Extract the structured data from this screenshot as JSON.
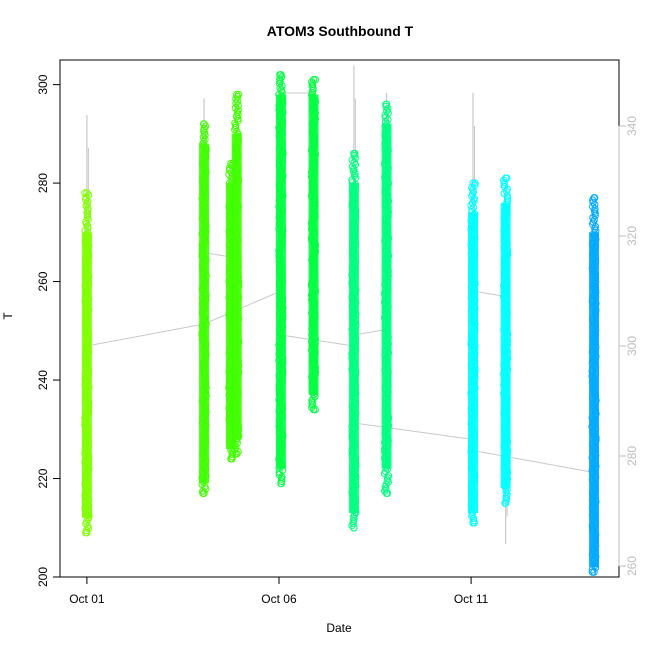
{
  "chart_data": {
    "type": "scatter",
    "title": "ATOM3 Southbound T",
    "xlabel": "Date",
    "ylabel": "T",
    "x_ticks": [
      {
        "day": 1,
        "label": "Oct 01"
      },
      {
        "day": 6,
        "label": "Oct 06"
      },
      {
        "day": 11,
        "label": "Oct 11"
      }
    ],
    "xlim": [
      "Oct 01",
      "Oct 15"
    ],
    "ylim": [
      200,
      305
    ],
    "y_ticks": [
      "200",
      "220",
      "240",
      "260",
      "280",
      "300"
    ],
    "ylim_right": [
      258,
      352
    ],
    "y2_ticks": [
      "260",
      "280",
      "300",
      "320",
      "340"
    ],
    "grid": false,
    "series": [
      {
        "color": "#80ff00",
        "segments": [
          {
            "date": "Oct 01",
            "day": 1.0,
            "ymin": 209,
            "ymax": 278,
            "dense": [
              212,
              270
            ]
          }
        ]
      },
      {
        "color": "#40ff00",
        "segments": [
          {
            "date": "Oct 04",
            "day": 4.05,
            "ymin": 217,
            "ymax": 292,
            "dense": [
              219,
              288
            ]
          },
          {
            "date": "Oct 05",
            "day": 4.75,
            "ymin": 224,
            "ymax": 284,
            "dense": [
              226,
              280
            ]
          },
          {
            "date": "Oct 05",
            "day": 4.9,
            "ymin": 225,
            "ymax": 298,
            "dense": [
              228,
              290
            ]
          }
        ]
      },
      {
        "color": "#00ff40",
        "segments": [
          {
            "date": "Oct 06",
            "day": 6.05,
            "ymin": 219,
            "ymax": 302,
            "dense": [
              222,
              298
            ]
          },
          {
            "date": "Oct 07",
            "day": 6.9,
            "ymin": 234,
            "ymax": 301,
            "dense": [
              237,
              298
            ]
          }
        ]
      },
      {
        "color": "#00ff80",
        "segments": [
          {
            "date": "Oct 08",
            "day": 7.95,
            "ymin": 210,
            "ymax": 286,
            "dense": [
              213,
              280
            ]
          },
          {
            "date": "Oct 09",
            "day": 8.8,
            "ymin": 217,
            "ymax": 296,
            "dense": [
              222,
              292
            ]
          }
        ]
      },
      {
        "color": "#00ffff",
        "segments": [
          {
            "date": "Oct 11",
            "day": 11.05,
            "ymin": 211,
            "ymax": 280,
            "dense": [
              213,
              274
            ]
          },
          {
            "date": "Oct 12",
            "day": 11.9,
            "ymin": 215,
            "ymax": 281,
            "dense": [
              218,
              276
            ]
          }
        ]
      },
      {
        "color": "#00aaff",
        "segments": [
          {
            "date": "Oct 15",
            "day": 14.2,
            "ymin": 201,
            "ymax": 277,
            "dense": [
              202,
              270
            ]
          }
        ]
      }
    ],
    "secondary_series": {
      "color": "#c8c8c8",
      "axis": "right",
      "spikes": [
        {
          "day": 1.0,
          "ymin": 278,
          "ymax": 342
        },
        {
          "day": 4.05,
          "ymin": 276,
          "ymax": 345
        },
        {
          "day": 6.05,
          "ymin": 296,
          "ymax": 350
        },
        {
          "day": 7.95,
          "ymin": 296,
          "ymax": 351
        },
        {
          "day": 8.8,
          "ymin": 296,
          "ymax": 346
        },
        {
          "day": 11.05,
          "ymin": 276,
          "ymax": 346
        },
        {
          "day": 11.9,
          "ymin": 264,
          "ymax": 329
        },
        {
          "day": 14.2,
          "ymin": 272,
          "ymax": 318
        }
      ],
      "connections": [
        {
          "x1": 1.0,
          "y1": 300,
          "x2": 4.05,
          "y2": 304
        },
        {
          "x1": 4.05,
          "y1": 317,
          "x2": 4.9,
          "y2": 316
        },
        {
          "x1": 4.05,
          "y1": 304,
          "x2": 6.05,
          "y2": 310
        },
        {
          "x1": 6.05,
          "y1": 346,
          "x2": 6.9,
          "y2": 346
        },
        {
          "x1": 6.05,
          "y1": 302,
          "x2": 7.95,
          "y2": 300
        },
        {
          "x1": 7.95,
          "y1": 302,
          "x2": 8.8,
          "y2": 303
        },
        {
          "x1": 7.95,
          "y1": 286,
          "x2": 11.05,
          "y2": 283
        },
        {
          "x1": 11.05,
          "y1": 310,
          "x2": 11.9,
          "y2": 309
        },
        {
          "x1": 11.05,
          "y1": 281,
          "x2": 14.2,
          "y2": 277
        }
      ]
    }
  }
}
